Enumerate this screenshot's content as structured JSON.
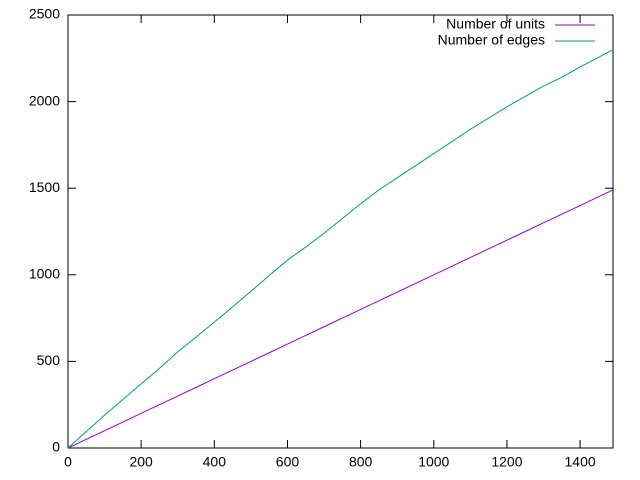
{
  "chart_data": {
    "type": "line",
    "x": [
      0,
      50,
      100,
      150,
      200,
      250,
      300,
      350,
      400,
      450,
      500,
      550,
      600,
      650,
      700,
      750,
      800,
      850,
      900,
      950,
      1000,
      1050,
      1100,
      1150,
      1200,
      1250,
      1300,
      1350,
      1400,
      1450,
      1490
    ],
    "series": [
      {
        "name": "Number of units",
        "color": "#9400d3",
        "values": [
          0,
          50,
          100,
          150,
          200,
          250,
          300,
          350,
          400,
          450,
          500,
          550,
          600,
          650,
          700,
          750,
          800,
          850,
          900,
          950,
          1000,
          1050,
          1100,
          1150,
          1200,
          1250,
          1300,
          1350,
          1400,
          1450,
          1490
        ]
      },
      {
        "name": "Number of edges",
        "color": "#009e73",
        "values": [
          0,
          95,
          190,
          280,
          370,
          460,
          555,
          640,
          727,
          815,
          905,
          995,
          1085,
          1160,
          1240,
          1325,
          1410,
          1490,
          1560,
          1630,
          1700,
          1770,
          1840,
          1905,
          1970,
          2030,
          2090,
          2140,
          2200,
          2255,
          2300
        ]
      }
    ],
    "xlim": [
      0,
      1490
    ],
    "ylim": [
      0,
      2500
    ],
    "xticks": [
      0,
      200,
      400,
      600,
      800,
      1000,
      1200,
      1400
    ],
    "yticks": [
      0,
      500,
      1000,
      1500,
      2000,
      2500
    ],
    "grid": false,
    "legend": "top-right"
  }
}
